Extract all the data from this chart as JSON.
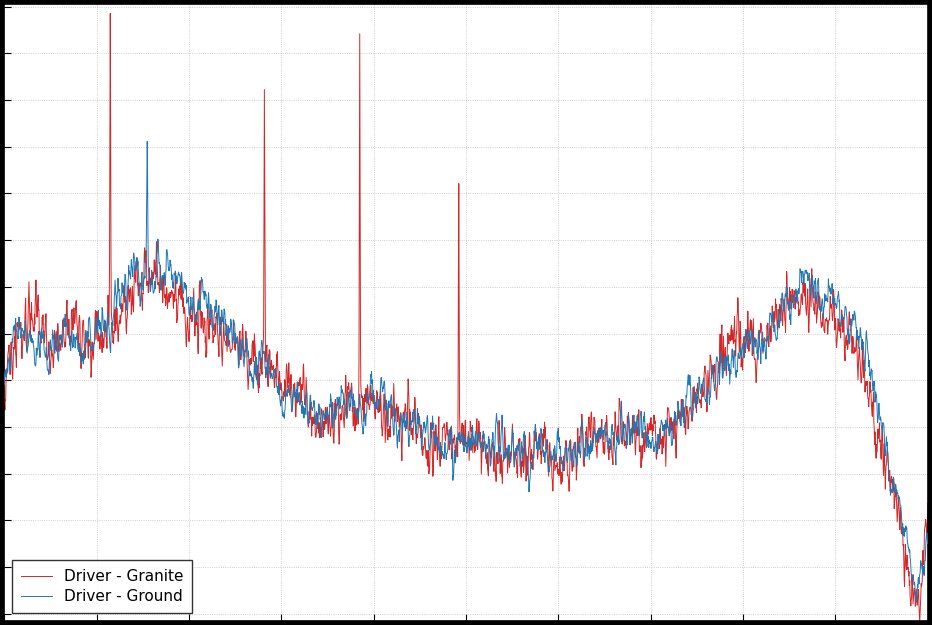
{
  "title": "",
  "xlabel": "",
  "ylabel": "",
  "legend": [
    "Driver - Ground",
    "Driver - Granite"
  ],
  "line_colors": [
    "#1f77b4",
    "#d62728"
  ],
  "background_color": "#ffffff",
  "grid_color": "#b0b0b0",
  "figsize": [
    9.32,
    6.25
  ],
  "dpi": 100,
  "seed": 42,
  "n_points": 2500
}
